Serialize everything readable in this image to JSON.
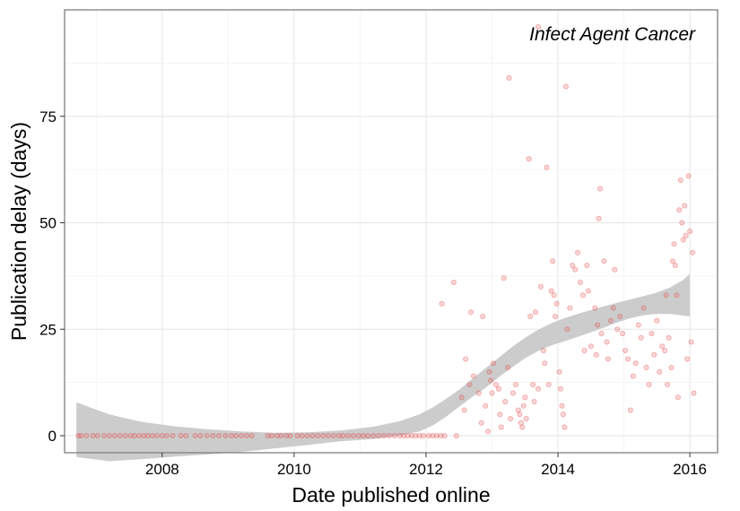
{
  "chart_data": {
    "type": "scatter",
    "title": "",
    "annotation": "Infect Agent Cancer",
    "xlabel": "Date published online",
    "ylabel": "Publication delay (days)",
    "xlim": [
      2006.52,
      2016.42
    ],
    "ylim": [
      -4,
      100
    ],
    "x_ticks": [
      2008,
      2010,
      2012,
      2014,
      2016
    ],
    "y_ticks": [
      0,
      25,
      50,
      75
    ],
    "x_tick_labels": [
      "2008",
      "2010",
      "2012",
      "2014",
      "2016"
    ],
    "y_tick_labels": [
      "0",
      "25",
      "50",
      "75"
    ],
    "grid": true,
    "point_color": "#e8474a",
    "smooth_band_color": "#cccccc",
    "points": [
      [
        2006.73,
        0
      ],
      [
        2006.77,
        0
      ],
      [
        2006.85,
        0
      ],
      [
        2006.95,
        0
      ],
      [
        2007.02,
        0
      ],
      [
        2007.12,
        0
      ],
      [
        2007.2,
        0
      ],
      [
        2007.28,
        0
      ],
      [
        2007.36,
        0
      ],
      [
        2007.44,
        0
      ],
      [
        2007.52,
        0
      ],
      [
        2007.58,
        0
      ],
      [
        2007.65,
        0
      ],
      [
        2007.72,
        0
      ],
      [
        2007.78,
        0
      ],
      [
        2007.85,
        0
      ],
      [
        2007.92,
        0
      ],
      [
        2008.0,
        0
      ],
      [
        2008.07,
        0
      ],
      [
        2008.16,
        0
      ],
      [
        2008.28,
        0
      ],
      [
        2008.36,
        0
      ],
      [
        2008.5,
        0
      ],
      [
        2008.58,
        0
      ],
      [
        2008.68,
        0
      ],
      [
        2008.77,
        0
      ],
      [
        2008.86,
        0
      ],
      [
        2008.96,
        0
      ],
      [
        2009.05,
        0
      ],
      [
        2009.12,
        0
      ],
      [
        2009.2,
        0
      ],
      [
        2009.28,
        0
      ],
      [
        2009.36,
        0
      ],
      [
        2009.6,
        0
      ],
      [
        2009.66,
        0
      ],
      [
        2009.74,
        0
      ],
      [
        2009.8,
        0
      ],
      [
        2009.88,
        0
      ],
      [
        2009.94,
        0
      ],
      [
        2010.05,
        0
      ],
      [
        2010.12,
        0
      ],
      [
        2010.2,
        0
      ],
      [
        2010.28,
        0
      ],
      [
        2010.36,
        0
      ],
      [
        2010.44,
        0
      ],
      [
        2010.52,
        0
      ],
      [
        2010.6,
        0
      ],
      [
        2010.68,
        0
      ],
      [
        2010.74,
        0
      ],
      [
        2010.82,
        0
      ],
      [
        2010.9,
        0
      ],
      [
        2010.98,
        0
      ],
      [
        2011.05,
        0
      ],
      [
        2011.12,
        0
      ],
      [
        2011.2,
        0
      ],
      [
        2011.28,
        0
      ],
      [
        2011.36,
        0
      ],
      [
        2011.44,
        0
      ],
      [
        2011.52,
        0
      ],
      [
        2011.6,
        0
      ],
      [
        2011.66,
        0
      ],
      [
        2011.72,
        0
      ],
      [
        2011.78,
        0
      ],
      [
        2011.84,
        0
      ],
      [
        2011.9,
        0
      ],
      [
        2011.96,
        0
      ],
      [
        2012.04,
        0
      ],
      [
        2012.1,
        0
      ],
      [
        2012.16,
        0
      ],
      [
        2012.22,
        0
      ],
      [
        2012.28,
        0
      ],
      [
        2012.46,
        0
      ],
      [
        2012.24,
        31
      ],
      [
        2012.42,
        36
      ],
      [
        2012.6,
        18
      ],
      [
        2012.68,
        29
      ],
      [
        2012.66,
        12
      ],
      [
        2012.58,
        6
      ],
      [
        2012.54,
        9
      ],
      [
        2012.72,
        14
      ],
      [
        2012.8,
        10
      ],
      [
        2012.86,
        28
      ],
      [
        2012.84,
        3
      ],
      [
        2012.9,
        7
      ],
      [
        2012.94,
        1
      ],
      [
        2012.96,
        15
      ],
      [
        2012.98,
        13
      ],
      [
        2013.0,
        10
      ],
      [
        2013.02,
        17
      ],
      [
        2013.06,
        12
      ],
      [
        2013.1,
        11
      ],
      [
        2013.12,
        5
      ],
      [
        2013.14,
        2
      ],
      [
        2013.18,
        37
      ],
      [
        2013.2,
        8
      ],
      [
        2013.24,
        16
      ],
      [
        2013.28,
        4
      ],
      [
        2013.32,
        10
      ],
      [
        2013.36,
        12
      ],
      [
        2013.4,
        6
      ],
      [
        2013.42,
        5
      ],
      [
        2013.44,
        3
      ],
      [
        2013.46,
        2
      ],
      [
        2013.48,
        7
      ],
      [
        2013.5,
        9
      ],
      [
        2013.52,
        4
      ],
      [
        2013.56,
        65
      ],
      [
        2013.58,
        28
      ],
      [
        2013.62,
        12
      ],
      [
        2013.64,
        8
      ],
      [
        2013.66,
        29
      ],
      [
        2013.7,
        11
      ],
      [
        2013.74,
        35
      ],
      [
        2013.78,
        20
      ],
      [
        2013.8,
        17
      ],
      [
        2013.83,
        63
      ],
      [
        2013.86,
        12
      ],
      [
        2013.9,
        34
      ],
      [
        2013.92,
        41
      ],
      [
        2013.94,
        33
      ],
      [
        2013.96,
        28
      ],
      [
        2013.98,
        31
      ],
      [
        2014.02,
        15
      ],
      [
        2014.04,
        11
      ],
      [
        2014.06,
        7
      ],
      [
        2014.08,
        5
      ],
      [
        2014.1,
        2
      ],
      [
        2014.14,
        25
      ],
      [
        2014.18,
        30
      ],
      [
        2014.22,
        40
      ],
      [
        2014.26,
        39
      ],
      [
        2014.3,
        43
      ],
      [
        2014.34,
        36
      ],
      [
        2014.38,
        33
      ],
      [
        2014.4,
        20
      ],
      [
        2014.44,
        40
      ],
      [
        2014.46,
        34
      ],
      [
        2014.5,
        21
      ],
      [
        2014.56,
        30
      ],
      [
        2014.58,
        19
      ],
      [
        2014.6,
        26
      ],
      [
        2014.62,
        51
      ],
      [
        2014.64,
        58
      ],
      [
        2014.66,
        24
      ],
      [
        2014.7,
        41
      ],
      [
        2014.74,
        22
      ],
      [
        2014.76,
        18
      ],
      [
        2014.8,
        27
      ],
      [
        2014.84,
        30
      ],
      [
        2014.86,
        39
      ],
      [
        2014.9,
        25
      ],
      [
        2014.94,
        28
      ],
      [
        2014.98,
        24
      ],
      [
        2015.02,
        20
      ],
      [
        2015.06,
        18
      ],
      [
        2015.1,
        6
      ],
      [
        2015.14,
        14
      ],
      [
        2015.18,
        17
      ],
      [
        2015.22,
        26
      ],
      [
        2015.26,
        23
      ],
      [
        2015.3,
        30
      ],
      [
        2015.34,
        16
      ],
      [
        2015.38,
        12
      ],
      [
        2015.42,
        24
      ],
      [
        2015.46,
        19
      ],
      [
        2015.5,
        27
      ],
      [
        2015.54,
        15
      ],
      [
        2015.58,
        21
      ],
      [
        2015.62,
        20
      ],
      [
        2015.64,
        33
      ],
      [
        2015.66,
        12
      ],
      [
        2015.68,
        23
      ],
      [
        2015.72,
        16
      ],
      [
        2015.74,
        41
      ],
      [
        2015.76,
        45
      ],
      [
        2015.78,
        40
      ],
      [
        2015.8,
        33
      ],
      [
        2015.82,
        9
      ],
      [
        2015.84,
        53
      ],
      [
        2015.86,
        60
      ],
      [
        2015.88,
        50
      ],
      [
        2015.9,
        46
      ],
      [
        2015.92,
        54
      ],
      [
        2015.94,
        47
      ],
      [
        2015.96,
        18
      ],
      [
        2015.98,
        61
      ],
      [
        2016.0,
        48
      ],
      [
        2016.02,
        22
      ],
      [
        2016.04,
        43
      ],
      [
        2016.06,
        10
      ],
      [
        2013.26,
        84
      ],
      [
        2014.12,
        82
      ],
      [
        2013.7,
        96
      ]
    ],
    "smooth": {
      "x": [
        2006.7,
        2007.2,
        2007.7,
        2008.2,
        2008.7,
        2009.2,
        2009.7,
        2010.2,
        2010.7,
        2011.2,
        2011.6,
        2011.9,
        2012.1,
        2012.3,
        2012.5,
        2012.7,
        2012.9,
        2013.1,
        2013.3,
        2013.5,
        2013.7,
        2013.9,
        2014.1,
        2014.3,
        2014.5,
        2014.7,
        2014.9,
        2015.1,
        2015.3,
        2015.5,
        2015.7,
        2015.9,
        2016.0
      ],
      "fit": [
        0.5,
        -0.6,
        -1.2,
        -1.4,
        -1.5,
        -1.4,
        -1.1,
        -0.6,
        0.0,
        0.7,
        1.5,
        3.0,
        4.5,
        6.5,
        8.8,
        11.2,
        13.5,
        16.0,
        18.4,
        20.6,
        22.4,
        23.8,
        24.9,
        25.9,
        26.9,
        27.9,
        28.9,
        29.8,
        30.5,
        31.0,
        31.3,
        31.4,
        31.5
      ],
      "upper": [
        7.8,
        5.0,
        3.2,
        2.2,
        1.5,
        1.0,
        0.7,
        0.8,
        1.2,
        2.1,
        3.4,
        5.0,
        6.6,
        8.6,
        10.8,
        13.3,
        15.8,
        18.3,
        20.8,
        23.0,
        24.9,
        26.4,
        27.6,
        28.6,
        29.5,
        30.4,
        31.2,
        32.0,
        32.8,
        33.6,
        34.8,
        36.6,
        38.0
      ],
      "lower": [
        -5.0,
        -6.0,
        -5.5,
        -4.9,
        -4.4,
        -3.8,
        -3.0,
        -2.2,
        -1.3,
        -0.8,
        0.0,
        1.0,
        2.4,
        4.4,
        6.8,
        9.1,
        11.2,
        13.7,
        16.0,
        18.2,
        19.9,
        21.2,
        22.2,
        23.2,
        24.3,
        25.4,
        26.6,
        27.6,
        28.3,
        28.6,
        28.6,
        28.2,
        28.0
      ]
    }
  }
}
